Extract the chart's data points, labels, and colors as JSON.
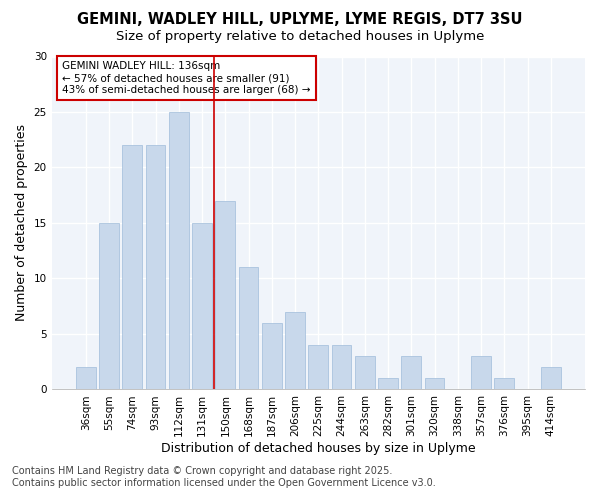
{
  "title1": "GEMINI, WADLEY HILL, UPLYME, LYME REGIS, DT7 3SU",
  "title2": "Size of property relative to detached houses in Uplyme",
  "xlabel": "Distribution of detached houses by size in Uplyme",
  "ylabel": "Number of detached properties",
  "categories": [
    "36sqm",
    "55sqm",
    "74sqm",
    "93sqm",
    "112sqm",
    "131sqm",
    "150sqm",
    "168sqm",
    "187sqm",
    "206sqm",
    "225sqm",
    "244sqm",
    "263sqm",
    "282sqm",
    "301sqm",
    "320sqm",
    "338sqm",
    "357sqm",
    "376sqm",
    "395sqm",
    "414sqm"
  ],
  "values": [
    2,
    15,
    22,
    22,
    25,
    15,
    17,
    11,
    6,
    7,
    4,
    4,
    3,
    1,
    3,
    1,
    0,
    3,
    1,
    0,
    2
  ],
  "bar_color": "#c8d8eb",
  "bar_edge_color": "#a0bcda",
  "background_color": "#ffffff",
  "plot_bg_color": "#f0f4fa",
  "grid_color": "#ffffff",
  "vline_color": "#cc0000",
  "vline_x": 5.5,
  "annotation_title": "GEMINI WADLEY HILL: 136sqm",
  "annotation_line1": "← 57% of detached houses are smaller (91)",
  "annotation_line2": "43% of semi-detached houses are larger (68) →",
  "annotation_box_facecolor": "#ffffff",
  "annotation_box_edgecolor": "#cc0000",
  "ylim": [
    0,
    30
  ],
  "yticks": [
    0,
    5,
    10,
    15,
    20,
    25,
    30
  ],
  "footer1": "Contains HM Land Registry data © Crown copyright and database right 2025.",
  "footer2": "Contains public sector information licensed under the Open Government Licence v3.0.",
  "title_fontsize": 10.5,
  "subtitle_fontsize": 9.5,
  "axis_label_fontsize": 9,
  "tick_fontsize": 7.5,
  "annotation_fontsize": 7.5,
  "footer_fontsize": 7
}
